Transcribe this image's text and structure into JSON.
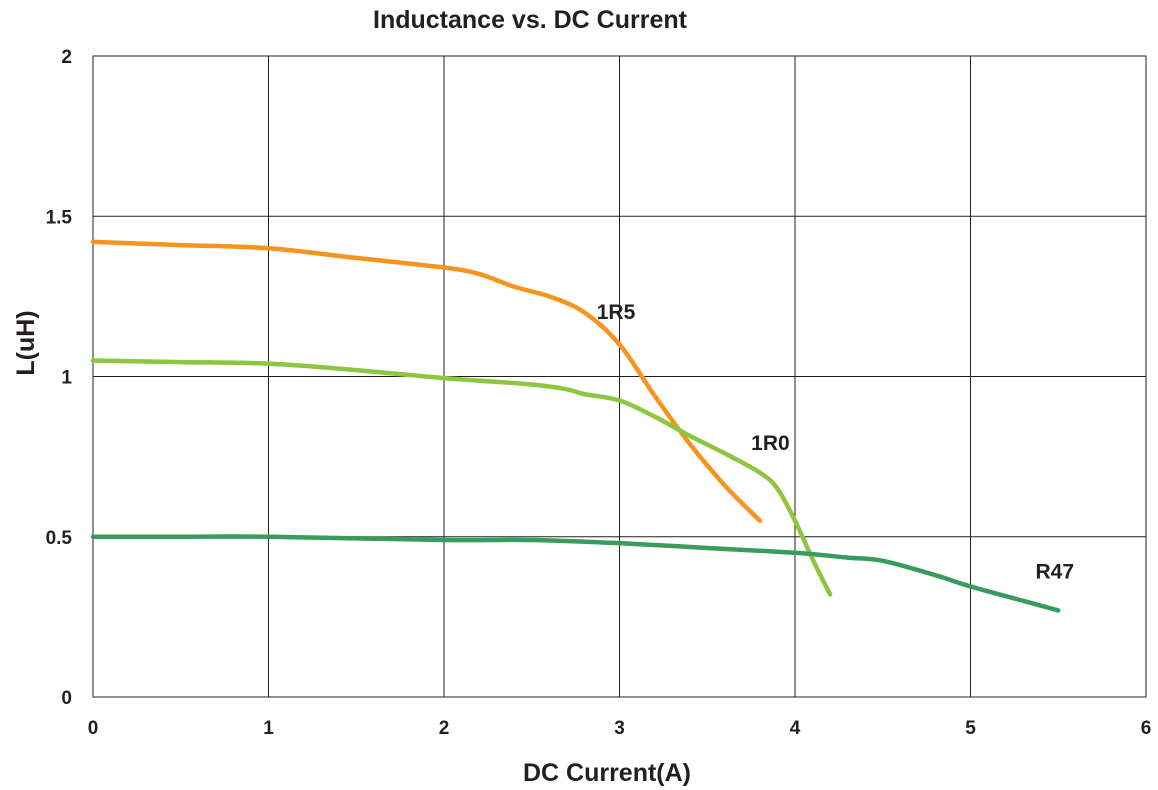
{
  "chart_data": {
    "type": "line",
    "title": "Inductance vs. DC Current",
    "xlabel": "DC Current(A)",
    "ylabel": "L(uH)",
    "xlim": [
      0,
      6
    ],
    "ylim": [
      0,
      2
    ],
    "x_ticks": [
      "0",
      "1",
      "2",
      "3",
      "4",
      "5",
      "6"
    ],
    "y_ticks": [
      "0",
      "0.5",
      "1",
      "1.5",
      "2"
    ],
    "grid": true,
    "legend": "none",
    "series": [
      {
        "name": "1R5",
        "color": "#f7941d",
        "points": [
          [
            0,
            1.42
          ],
          [
            0.5,
            1.41
          ],
          [
            1.0,
            1.4
          ],
          [
            1.5,
            1.37
          ],
          [
            2.0,
            1.34
          ],
          [
            2.2,
            1.32
          ],
          [
            2.4,
            1.28
          ],
          [
            2.6,
            1.25
          ],
          [
            2.8,
            1.2
          ],
          [
            3.0,
            1.1
          ],
          [
            3.2,
            0.94
          ],
          [
            3.4,
            0.79
          ],
          [
            3.6,
            0.66
          ],
          [
            3.8,
            0.55
          ]
        ]
      },
      {
        "name": "1R0",
        "color": "#8dc63f",
        "points": [
          [
            0,
            1.05
          ],
          [
            0.5,
            1.045
          ],
          [
            1.0,
            1.04
          ],
          [
            1.5,
            1.02
          ],
          [
            2.0,
            0.995
          ],
          [
            2.5,
            0.975
          ],
          [
            2.7,
            0.96
          ],
          [
            2.8,
            0.945
          ],
          [
            3.0,
            0.925
          ],
          [
            3.2,
            0.875
          ],
          [
            3.4,
            0.815
          ],
          [
            3.6,
            0.76
          ],
          [
            3.8,
            0.7
          ],
          [
            3.9,
            0.65
          ],
          [
            4.0,
            0.55
          ],
          [
            4.1,
            0.43
          ],
          [
            4.2,
            0.32
          ]
        ]
      },
      {
        "name": "R47",
        "color": "#3a9b5e",
        "points": [
          [
            0,
            0.5
          ],
          [
            0.5,
            0.5
          ],
          [
            1.0,
            0.5
          ],
          [
            2.0,
            0.49
          ],
          [
            2.5,
            0.49
          ],
          [
            3.0,
            0.48
          ],
          [
            3.5,
            0.465
          ],
          [
            4.0,
            0.45
          ],
          [
            4.3,
            0.435
          ],
          [
            4.5,
            0.425
          ],
          [
            4.8,
            0.38
          ],
          [
            5.0,
            0.345
          ],
          [
            5.3,
            0.3
          ],
          [
            5.5,
            0.27
          ]
        ]
      }
    ]
  }
}
